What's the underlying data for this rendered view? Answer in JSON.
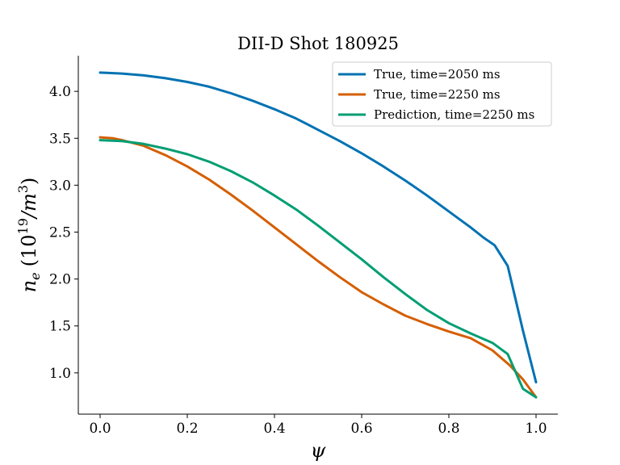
{
  "chart_data": {
    "type": "line",
    "title": "DII-D Shot 180925",
    "xlabel": "ψ",
    "ylabel_symbol": "n",
    "ylabel_subscript": "e",
    "ylabel_base": "(10",
    "ylabel_exp": "19",
    "ylabel_mid": "/m",
    "ylabel_exp2": "3",
    "ylabel_close": ")",
    "xlim": [
      -0.05,
      1.05
    ],
    "ylim": [
      0.56,
      4.38
    ],
    "x_ticks": [
      0.0,
      0.2,
      0.4,
      0.6,
      0.8,
      1.0
    ],
    "x_tick_labels": [
      "0.0",
      "0.2",
      "0.4",
      "0.6",
      "0.8",
      "1.0"
    ],
    "y_ticks": [
      1.0,
      1.5,
      2.0,
      2.5,
      3.0,
      3.5,
      4.0
    ],
    "y_tick_labels": [
      "1.0",
      "1.5",
      "2.0",
      "2.5",
      "3.0",
      "3.5",
      "4.0"
    ],
    "grid": false,
    "legend_position": "top-right",
    "series": [
      {
        "name": "True, time=2050 ms",
        "color": "#0072b2",
        "x": [
          0.0,
          0.05,
          0.1,
          0.15,
          0.2,
          0.25,
          0.3,
          0.35,
          0.4,
          0.45,
          0.5,
          0.55,
          0.6,
          0.65,
          0.7,
          0.75,
          0.8,
          0.85,
          0.88,
          0.905,
          0.935,
          0.97,
          1.0
        ],
        "y": [
          4.2,
          4.19,
          4.17,
          4.14,
          4.1,
          4.05,
          3.98,
          3.9,
          3.81,
          3.71,
          3.59,
          3.47,
          3.34,
          3.2,
          3.05,
          2.89,
          2.72,
          2.55,
          2.44,
          2.36,
          2.14,
          1.45,
          0.9
        ]
      },
      {
        "name": "True, time=2250 ms",
        "color": "#d55e00",
        "x": [
          0.0,
          0.03,
          0.05,
          0.1,
          0.15,
          0.2,
          0.25,
          0.3,
          0.35,
          0.4,
          0.45,
          0.5,
          0.55,
          0.6,
          0.65,
          0.7,
          0.75,
          0.8,
          0.85,
          0.9,
          0.94,
          0.97,
          1.0
        ],
        "y": [
          3.51,
          3.5,
          3.48,
          3.42,
          3.32,
          3.2,
          3.06,
          2.9,
          2.73,
          2.55,
          2.37,
          2.19,
          2.02,
          1.86,
          1.73,
          1.61,
          1.52,
          1.44,
          1.37,
          1.24,
          1.08,
          0.93,
          0.74
        ]
      },
      {
        "name": "Prediction, time=2250 ms",
        "color": "#009e73",
        "x": [
          0.0,
          0.05,
          0.1,
          0.15,
          0.2,
          0.25,
          0.3,
          0.35,
          0.4,
          0.45,
          0.5,
          0.55,
          0.6,
          0.65,
          0.7,
          0.75,
          0.8,
          0.85,
          0.9,
          0.935,
          0.97,
          1.0
        ],
        "y": [
          3.48,
          3.47,
          3.44,
          3.39,
          3.33,
          3.25,
          3.15,
          3.03,
          2.89,
          2.74,
          2.57,
          2.39,
          2.21,
          2.02,
          1.84,
          1.67,
          1.53,
          1.42,
          1.32,
          1.2,
          0.83,
          0.74
        ]
      }
    ]
  }
}
